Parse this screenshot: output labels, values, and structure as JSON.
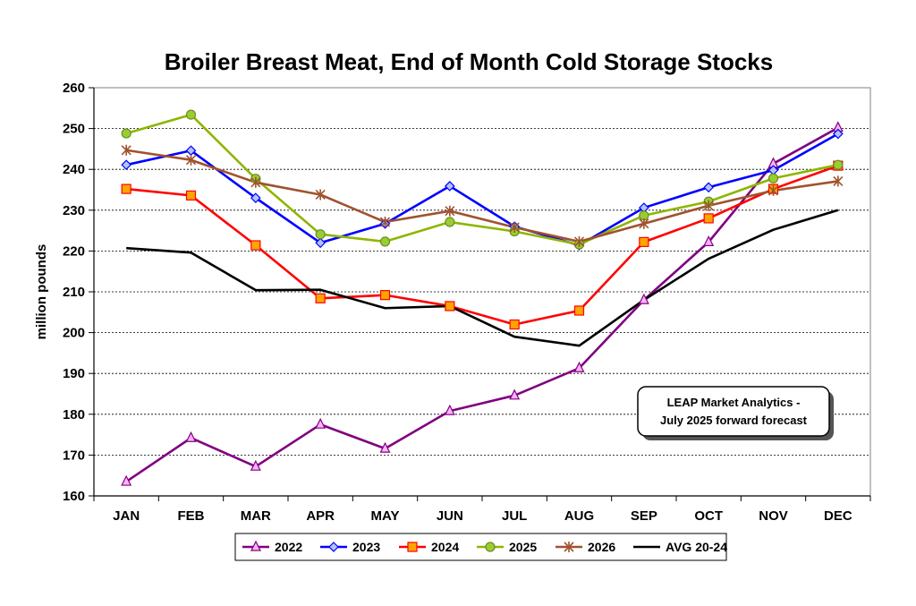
{
  "chart_data": {
    "type": "line",
    "title": "Broiler Breast Meat, End of Month Cold Storage Stocks",
    "ylabel": "million pounds",
    "xlabel": "",
    "ylim": [
      160,
      260
    ],
    "y_ticks": [
      160,
      170,
      180,
      190,
      200,
      210,
      220,
      230,
      240,
      250,
      260
    ],
    "grid": "horizontal-dashed",
    "categories": [
      "JAN",
      "FEB",
      "MAR",
      "APR",
      "MAY",
      "JUN",
      "JUL",
      "AUG",
      "SEP",
      "OCT",
      "NOV",
      "DEC"
    ],
    "series": [
      {
        "name": "2022",
        "color": "#800080",
        "marker": "triangle",
        "values": [
          163.5,
          174.2,
          167.2,
          177.5,
          171.6,
          180.8,
          184.6,
          191.3,
          208.0,
          222.2,
          241.4,
          250.2
        ]
      },
      {
        "name": "2023",
        "color": "#0000FF",
        "marker": "diamond",
        "values": [
          241.1,
          244.6,
          233.0,
          222.0,
          226.7,
          235.9,
          226.0,
          221.4,
          230.6,
          235.6,
          239.8,
          248.7
        ]
      },
      {
        "name": "2024",
        "color": "#FF0000",
        "marker": "square",
        "values": [
          235.2,
          233.6,
          221.4,
          208.4,
          209.2,
          206.5,
          202.0,
          205.4,
          222.2,
          228.0,
          235.2,
          240.9
        ]
      },
      {
        "name": "2025",
        "color": "#8DB600",
        "marker": "circle",
        "values": [
          248.8,
          253.4,
          237.7,
          224.1,
          222.3,
          227.1,
          224.8,
          221.6,
          228.7,
          232.1,
          237.8,
          241.1
        ]
      },
      {
        "name": "2026",
        "color": "#A0522D",
        "marker": "star",
        "values": [
          244.7,
          242.3,
          236.8,
          233.8,
          227.1,
          229.8,
          225.8,
          222.3,
          226.7,
          231.1,
          234.8,
          237.1
        ]
      },
      {
        "name": "AVG 20-24",
        "color": "#000000",
        "marker": "none",
        "values": [
          220.7,
          219.6,
          210.4,
          210.5,
          206.0,
          206.5,
          199.0,
          196.8,
          208.0,
          218.1,
          225.2,
          230.0
        ]
      }
    ],
    "annotation": {
      "line1": "LEAP Market Analytics -",
      "line2": "July 2025 forward forecast"
    },
    "legend_position": "bottom"
  }
}
